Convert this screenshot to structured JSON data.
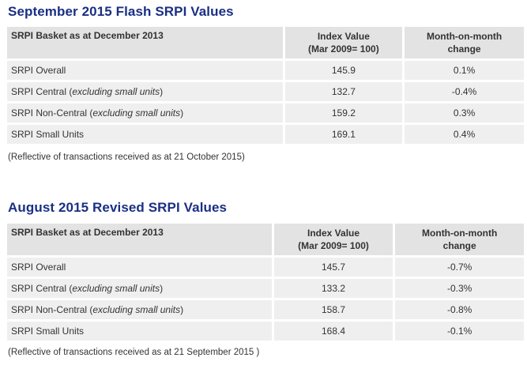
{
  "sections": [
    {
      "title": "September 2015 Flash SRPI Values",
      "headers": {
        "basket": "SRPI Basket as at December 2013",
        "index_line1": "Index Value",
        "index_line2": "(Mar 2009= 100)",
        "change_line1": "Month-on-month",
        "change_line2": "change"
      },
      "rows": [
        {
          "label": "SRPI Overall",
          "qualifier": "",
          "index": "145.9",
          "change": "0.1%"
        },
        {
          "label": "SRPI Central (",
          "qualifier": "excluding small units",
          "close": ")",
          "index": "132.7",
          "change": "-0.4%"
        },
        {
          "label": "SRPI Non-Central (",
          "qualifier": "excluding small units",
          "close": ")",
          "index": "159.2",
          "change": "0.3%"
        },
        {
          "label": "SRPI Small Units",
          "qualifier": "",
          "index": "169.1",
          "change": "0.4%"
        }
      ],
      "note": "(Reflective of transactions received as at 21 October 2015)"
    },
    {
      "title": "August 2015 Revised SRPI Values",
      "headers": {
        "basket": "SRPI Basket as at December 2013",
        "index_line1": "Index Value",
        "index_line2": "(Mar 2009= 100)",
        "change_line1": "Month-on-month",
        "change_line2": "change"
      },
      "rows": [
        {
          "label": "SRPI Overall",
          "qualifier": "",
          "index": "145.7",
          "change": "-0.7%"
        },
        {
          "label": "SRPI Central (",
          "qualifier": "excluding small units",
          "close": ")",
          "index": "133.2",
          "change": "-0.3%"
        },
        {
          "label": "SRPI Non-Central (",
          "qualifier": "excluding small units",
          "close": ")",
          "index": "158.7",
          "change": "-0.8%"
        },
        {
          "label": "SRPI Small Units",
          "qualifier": "",
          "index": "168.4",
          "change": "-0.1%"
        }
      ],
      "note": "(Reflective of transactions received as at 21 September 2015 )"
    }
  ],
  "colors": {
    "title": "#1a2f84",
    "header_bg": "#e3e3e3",
    "cell_bg": "#efefef"
  }
}
